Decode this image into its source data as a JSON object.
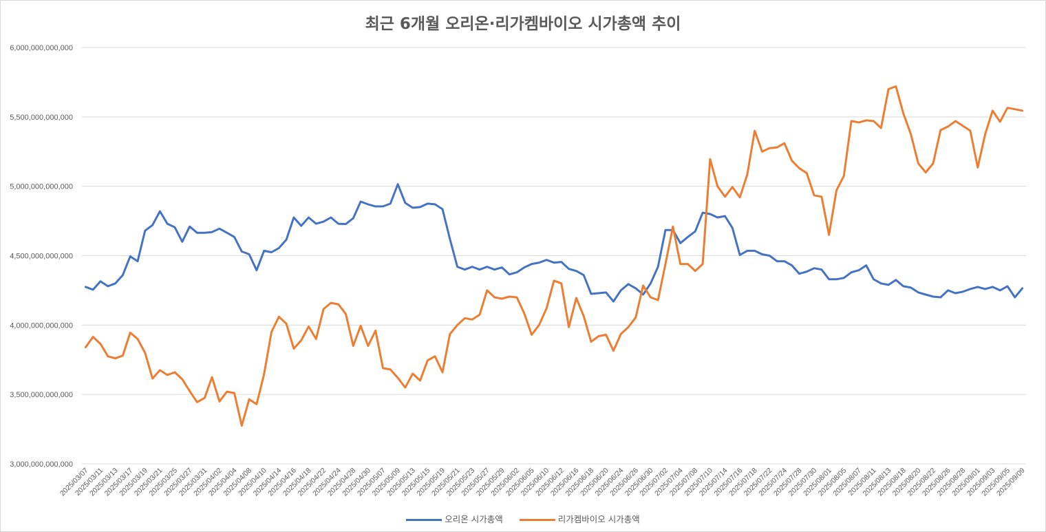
{
  "colors": {
    "orion": "#4472C4",
    "ligachem": "#ED7D31",
    "grid": "#d9d9d9",
    "text": "#595959"
  },
  "chart_data": {
    "type": "line",
    "title": "최근 6개월 오리온·리가켐바이오 시가총액 추이",
    "xlabel": "",
    "ylabel": "",
    "ylim": [
      3000000000000,
      6000000000000
    ],
    "yticks": [
      3000000000000,
      3500000000000,
      4000000000000,
      4500000000000,
      5000000000000,
      5500000000000,
      6000000000000
    ],
    "ytick_labels": [
      "3,000,000,000,000",
      "3,500,000,000,000",
      "4,000,000,000,000",
      "4,500,000,000,000",
      "5,000,000,000,000",
      "5,500,000,000,000",
      "6,000,000,000,000"
    ],
    "grid": true,
    "legend": "bottom",
    "x": [
      "2025/03/07",
      "2025/03/10",
      "2025/03/11",
      "2025/03/12",
      "2025/03/13",
      "2025/03/14",
      "2025/03/17",
      "2025/03/18",
      "2025/03/19",
      "2025/03/20",
      "2025/03/21",
      "2025/03/24",
      "2025/03/25",
      "2025/03/26",
      "2025/03/27",
      "2025/03/28",
      "2025/03/31",
      "2025/04/01",
      "2025/04/02",
      "2025/04/03",
      "2025/04/04",
      "2025/04/07",
      "2025/04/08",
      "2025/04/09",
      "2025/04/10",
      "2025/04/11",
      "2025/04/14",
      "2025/04/15",
      "2025/04/16",
      "2025/04/17",
      "2025/04/18",
      "2025/04/21",
      "2025/04/22",
      "2025/04/23",
      "2025/04/24",
      "2025/04/25",
      "2025/04/28",
      "2025/04/29",
      "2025/04/30",
      "2025/05/02",
      "2025/05/07",
      "2025/05/08",
      "2025/05/09",
      "2025/05/12",
      "2025/05/13",
      "2025/05/14",
      "2025/05/15",
      "2025/05/16",
      "2025/05/19",
      "2025/05/20",
      "2025/05/21",
      "2025/05/22",
      "2025/05/23",
      "2025/05/26",
      "2025/05/27",
      "2025/05/28",
      "2025/05/29",
      "2025/05/30",
      "2025/06/02",
      "2025/06/04",
      "2025/06/05",
      "2025/06/09",
      "2025/06/10",
      "2025/06/11",
      "2025/06/12",
      "2025/06/13",
      "2025/06/16",
      "2025/06/17",
      "2025/06/18",
      "2025/06/19",
      "2025/06/20",
      "2025/06/23",
      "2025/06/24",
      "2025/06/25",
      "2025/06/26",
      "2025/06/27",
      "2025/06/30",
      "2025/07/01",
      "2025/07/02",
      "2025/07/03",
      "2025/07/04",
      "2025/07/07",
      "2025/07/08",
      "2025/07/09",
      "2025/07/10",
      "2025/07/11",
      "2025/07/14",
      "2025/07/15",
      "2025/07/16",
      "2025/07/17",
      "2025/07/18",
      "2025/07/21",
      "2025/07/22",
      "2025/07/23",
      "2025/07/24",
      "2025/07/25",
      "2025/07/28",
      "2025/07/29",
      "2025/07/30",
      "2025/07/31",
      "2025/08/01",
      "2025/08/04",
      "2025/08/05",
      "2025/08/06",
      "2025/08/07",
      "2025/08/08",
      "2025/08/11",
      "2025/08/12",
      "2025/08/13",
      "2025/08/14",
      "2025/08/18",
      "2025/08/19",
      "2025/08/20",
      "2025/08/21",
      "2025/08/22",
      "2025/08/25",
      "2025/08/26",
      "2025/08/27",
      "2025/08/28",
      "2025/08/29",
      "2025/09/01",
      "2025/09/02",
      "2025/09/03",
      "2025/09/04",
      "2025/09/05",
      "2025/09/08",
      "2025/09/09"
    ],
    "x_tick_labels": [
      "2025/03/07",
      "2025/03/11",
      "2025/03/13",
      "2025/03/17",
      "2025/03/19",
      "2025/03/21",
      "2025/03/25",
      "2025/03/27",
      "2025/03/31",
      "2025/04/02",
      "2025/04/04",
      "2025/04/08",
      "2025/04/10",
      "2025/04/14",
      "2025/04/16",
      "2025/04/18",
      "2025/04/22",
      "2025/04/24",
      "2025/04/28",
      "2025/04/30",
      "2025/05/07",
      "2025/05/09",
      "2025/05/13",
      "2025/05/15",
      "2025/05/19",
      "2025/05/21",
      "2025/05/23",
      "2025/05/27",
      "2025/05/29",
      "2025/06/02",
      "2025/06/05",
      "2025/06/10",
      "2025/06/12",
      "2025/06/16",
      "2025/06/18",
      "2025/06/20",
      "2025/06/24",
      "2025/06/26",
      "2025/06/30",
      "2025/07/02",
      "2025/07/04",
      "2025/07/08",
      "2025/07/10",
      "2025/07/14",
      "2025/07/16",
      "2025/07/18",
      "2025/07/22",
      "2025/07/24",
      "2025/07/28",
      "2025/07/30",
      "2025/08/01",
      "2025/08/05",
      "2025/08/07",
      "2025/08/11",
      "2025/08/13",
      "2025/08/18",
      "2025/08/20",
      "2025/08/22",
      "2025/08/26",
      "2025/08/28",
      "2025/09/01",
      "2025/09/03",
      "2025/09/05",
      "2025/09/09"
    ],
    "series": [
      {
        "name": "오리온 시가총액",
        "color": "#4472C4",
        "values": [
          4275000000000,
          4255000000000,
          4315000000000,
          4280000000000,
          4300000000000,
          4360000000000,
          4495000000000,
          4460000000000,
          4680000000000,
          4720000000000,
          4820000000000,
          4730000000000,
          4705000000000,
          4600000000000,
          4710000000000,
          4665000000000,
          4665000000000,
          4670000000000,
          4695000000000,
          4665000000000,
          4635000000000,
          4530000000000,
          4510000000000,
          4395000000000,
          4535000000000,
          4525000000000,
          4555000000000,
          4615000000000,
          4775000000000,
          4715000000000,
          4775000000000,
          4730000000000,
          4745000000000,
          4775000000000,
          4730000000000,
          4728000000000,
          4770000000000,
          4890000000000,
          4870000000000,
          4855000000000,
          4855000000000,
          4875000000000,
          5015000000000,
          4880000000000,
          4845000000000,
          4850000000000,
          4875000000000,
          4870000000000,
          4835000000000,
          4620000000000,
          4420000000000,
          4400000000000,
          4420000000000,
          4400000000000,
          4420000000000,
          4400000000000,
          4415000000000,
          4365000000000,
          4380000000000,
          4415000000000,
          4440000000000,
          4450000000000,
          4470000000000,
          4450000000000,
          4455000000000,
          4405000000000,
          4390000000000,
          4360000000000,
          4225000000000,
          4230000000000,
          4235000000000,
          4170000000000,
          4250000000000,
          4295000000000,
          4265000000000,
          4220000000000,
          4300000000000,
          4420000000000,
          4685000000000,
          4685000000000,
          4590000000000,
          4635000000000,
          4675000000000,
          4810000000000,
          4800000000000,
          4775000000000,
          4785000000000,
          4700000000000,
          4505000000000,
          4535000000000,
          4535000000000,
          4510000000000,
          4500000000000,
          4460000000000,
          4460000000000,
          4430000000000,
          4370000000000,
          4385000000000,
          4410000000000,
          4400000000000,
          4330000000000,
          4330000000000,
          4340000000000,
          4380000000000,
          4395000000000,
          4430000000000,
          4330000000000,
          4300000000000,
          4290000000000,
          4325000000000,
          4280000000000,
          4270000000000,
          4235000000000,
          4220000000000,
          4205000000000,
          4200000000000,
          4250000000000,
          4230000000000,
          4240000000000,
          4260000000000,
          4275000000000,
          4260000000000,
          4275000000000,
          4250000000000,
          4280000000000,
          4200000000000,
          4265000000000
        ]
      },
      {
        "name": "리가켐바이오 시가총액",
        "color": "#ED7D31",
        "values": [
          3840000000000,
          3915000000000,
          3865000000000,
          3775000000000,
          3760000000000,
          3780000000000,
          3945000000000,
          3900000000000,
          3800000000000,
          3615000000000,
          3675000000000,
          3640000000000,
          3660000000000,
          3610000000000,
          3525000000000,
          3445000000000,
          3475000000000,
          3625000000000,
          3450000000000,
          3520000000000,
          3510000000000,
          3275000000000,
          3465000000000,
          3430000000000,
          3645000000000,
          3950000000000,
          4060000000000,
          4010000000000,
          3830000000000,
          3890000000000,
          3990000000000,
          3900000000000,
          4115000000000,
          4160000000000,
          4150000000000,
          4080000000000,
          3850000000000,
          3995000000000,
          3850000000000,
          3960000000000,
          3690000000000,
          3680000000000,
          3620000000000,
          3550000000000,
          3650000000000,
          3600000000000,
          3745000000000,
          3775000000000,
          3660000000000,
          3935000000000,
          4000000000000,
          4050000000000,
          4040000000000,
          4075000000000,
          4250000000000,
          4200000000000,
          4190000000000,
          4205000000000,
          4200000000000,
          4085000000000,
          3930000000000,
          4000000000000,
          4120000000000,
          4320000000000,
          4300000000000,
          3985000000000,
          4195000000000,
          4065000000000,
          3880000000000,
          3920000000000,
          3930000000000,
          3815000000000,
          3935000000000,
          3985000000000,
          4055000000000,
          4285000000000,
          4200000000000,
          4180000000000,
          4440000000000,
          4710000000000,
          4440000000000,
          4440000000000,
          4390000000000,
          4440000000000,
          5195000000000,
          5000000000000,
          4925000000000,
          4995000000000,
          4920000000000,
          5085000000000,
          5400000000000,
          5250000000000,
          5275000000000,
          5280000000000,
          5310000000000,
          5185000000000,
          5130000000000,
          5095000000000,
          4935000000000,
          4925000000000,
          4650000000000,
          4970000000000,
          5075000000000,
          5470000000000,
          5460000000000,
          5475000000000,
          5470000000000,
          5420000000000,
          5700000000000,
          5720000000000,
          5525000000000,
          5375000000000,
          5165000000000,
          5100000000000,
          5165000000000,
          5405000000000,
          5430000000000,
          5470000000000,
          5435000000000,
          5400000000000,
          5135000000000,
          5375000000000,
          5545000000000,
          5465000000000,
          5565000000000,
          5555000000000,
          5545000000000
        ]
      }
    ]
  }
}
